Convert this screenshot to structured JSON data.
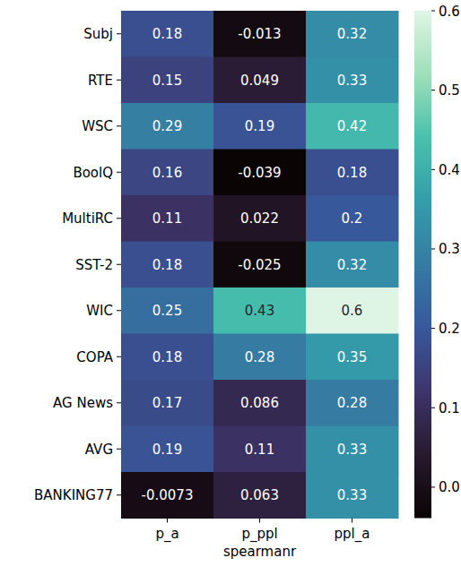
{
  "chart_data": {
    "type": "heatmap",
    "x_label": "spearmanr",
    "x_categories": [
      "p_a",
      "p_ppl",
      "ppl_a"
    ],
    "y_categories": [
      "Subj",
      "RTE",
      "WSC",
      "BoolQ",
      "MultiRC",
      "SST-2",
      "WIC",
      "COPA",
      "AG News",
      "AVG",
      "BANKING77"
    ],
    "values": [
      [
        0.18,
        -0.013,
        0.32
      ],
      [
        0.15,
        0.049,
        0.33
      ],
      [
        0.29,
        0.19,
        0.42
      ],
      [
        0.16,
        -0.039,
        0.18
      ],
      [
        0.11,
        0.022,
        0.2
      ],
      [
        0.18,
        -0.025,
        0.32
      ],
      [
        0.25,
        0.43,
        0.6
      ],
      [
        0.18,
        0.28,
        0.35
      ],
      [
        0.17,
        0.086,
        0.28
      ],
      [
        0.19,
        0.11,
        0.33
      ],
      [
        -0.0073,
        0.063,
        0.33
      ]
    ],
    "data_labels": true,
    "colorbar": {
      "range": [
        -0.039,
        0.6
      ],
      "ticks": [
        {
          "value": 0,
          "label": "0.0"
        },
        0.1,
        0.2,
        0.3,
        0.4,
        0.5,
        0.6
      ]
    }
  }
}
